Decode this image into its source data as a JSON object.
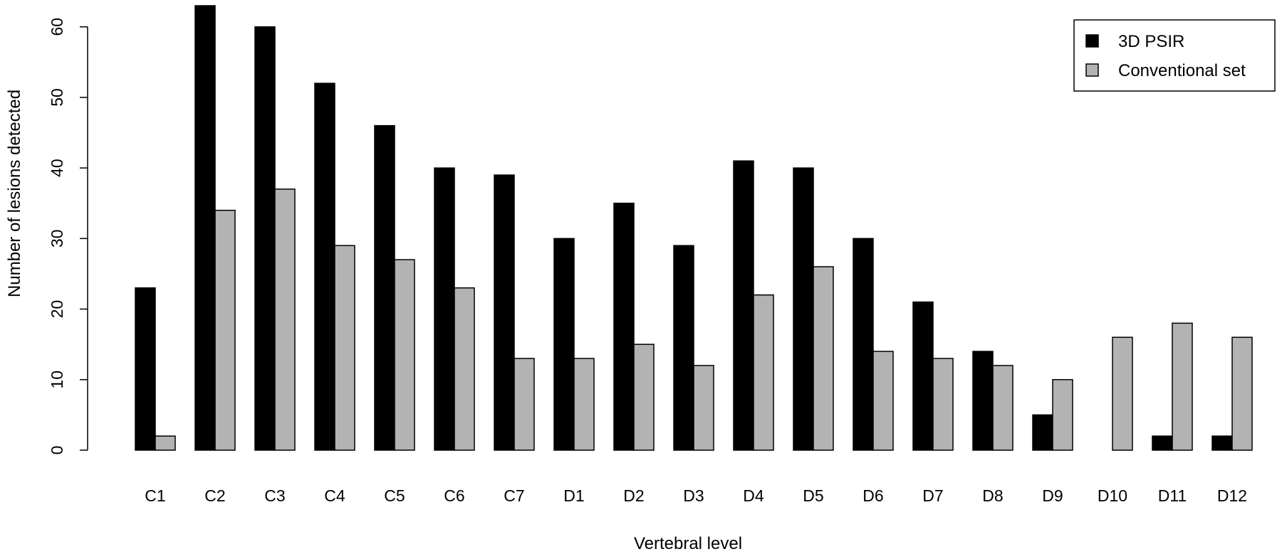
{
  "chart_data": {
    "type": "bar",
    "title": "",
    "xlabel": "Vertebral level",
    "ylabel": "Number of lesions detected",
    "categories": [
      "C1",
      "C2",
      "C3",
      "C4",
      "C5",
      "C6",
      "C7",
      "D1",
      "D2",
      "D3",
      "D4",
      "D5",
      "D6",
      "D7",
      "D8",
      "D9",
      "D10",
      "D11",
      "D12"
    ],
    "series": [
      {
        "name": "3D PSIR",
        "color": "#000000",
        "values": [
          23,
          63,
          60,
          52,
          46,
          40,
          39,
          30,
          35,
          29,
          41,
          40,
          30,
          21,
          14,
          5,
          0,
          2,
          2
        ]
      },
      {
        "name": "Conventional set",
        "color": "#b3b3b3",
        "values": [
          2,
          34,
          37,
          29,
          27,
          23,
          13,
          13,
          15,
          12,
          22,
          26,
          14,
          13,
          12,
          10,
          16,
          18,
          16
        ]
      }
    ],
    "ylim": [
      0,
      63
    ],
    "yticks": [
      0,
      10,
      20,
      30,
      40,
      50,
      60
    ],
    "grid": false,
    "legend_position": "top-right",
    "bar_layout": "grouped"
  }
}
